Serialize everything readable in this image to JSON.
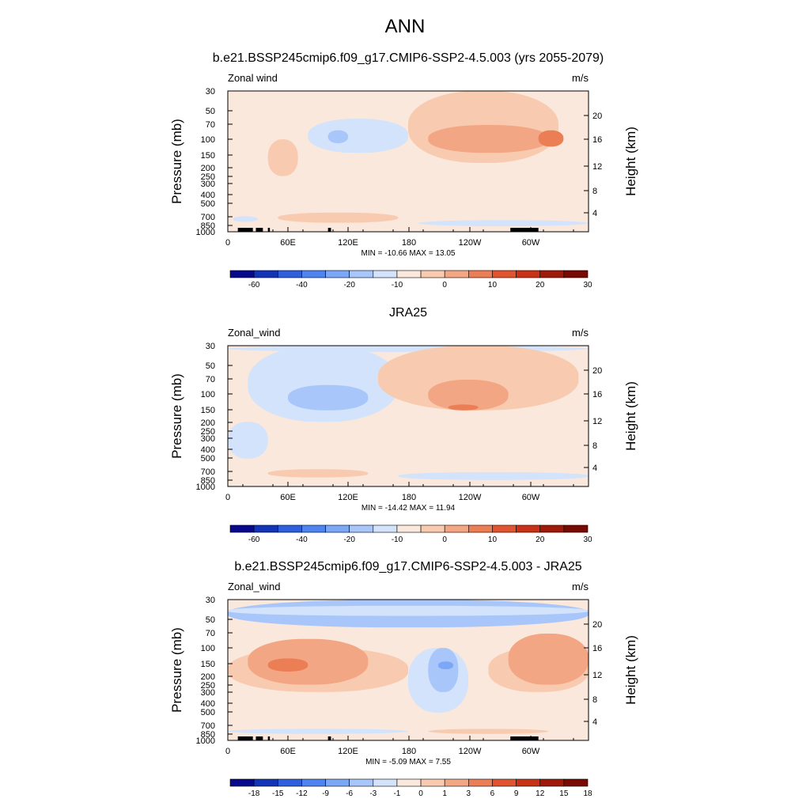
{
  "figure": {
    "title": "ANN"
  },
  "chart_data": [
    {
      "type": "heatmap",
      "title": "b.e21.BSSP245cmip6.f09_g17.CMIP6-SSP2-4.5.003 (yrs 2055-2079)",
      "left_label": "Zonal wind",
      "right_label": "m/s",
      "ylabel": "Pressure (mb)",
      "y2label": "Height (km)",
      "xticks": [
        "0",
        "60E",
        "120E",
        "180",
        "120W",
        "60W"
      ],
      "x_range": [
        0,
        360
      ],
      "yticks": [
        "30",
        "50",
        "70",
        "100",
        "150",
        "200",
        "250",
        "300",
        "400",
        "500",
        "700",
        "850",
        "1000"
      ],
      "y_range": [
        1000,
        30
      ],
      "y2ticks": [
        "20",
        "16",
        "12",
        "8",
        "4"
      ],
      "stats": "MIN = -10.66  MAX =  13.05",
      "colorbar": {
        "labels": [
          "-60",
          "-40",
          "-20",
          "-10",
          "0",
          "10",
          "20",
          "30"
        ],
        "colors": [
          "#08088c",
          "#1434b8",
          "#2f5fdc",
          "#4f84f0",
          "#7ca7f7",
          "#a8c6f9",
          "#d2e3fb",
          "#fbe8dc",
          "#f8cbb0",
          "#f3a683",
          "#ec7e55",
          "#e05530",
          "#c83318",
          "#a01a0c",
          "#780a04"
        ]
      },
      "blobs": [
        {
          "x": 0,
          "y": 960,
          "w": 360,
          "h": 920,
          "level": 0,
          "color": "#fbe8dc"
        },
        {
          "x": 80,
          "y": 140,
          "w": 100,
          "h": 80,
          "level": -1,
          "color": "#d2e3fb"
        },
        {
          "x": 100,
          "y": 110,
          "w": 20,
          "h": 30,
          "level": -2,
          "color": "#a8c6f9"
        },
        {
          "x": 180,
          "y": 180,
          "w": 150,
          "h": 190,
          "level": 1,
          "color": "#f8cbb0"
        },
        {
          "x": 200,
          "y": 140,
          "w": 120,
          "h": 70,
          "level": 2,
          "color": "#f3a683"
        },
        {
          "x": 310,
          "y": 120,
          "w": 25,
          "h": 40,
          "level": 3,
          "color": "#ec7e55"
        },
        {
          "x": 40,
          "y": 250,
          "w": 30,
          "h": 150,
          "level": 1,
          "color": "#f8cbb0"
        },
        {
          "x": 50,
          "y": 800,
          "w": 120,
          "h": 180,
          "level": 1,
          "color": "#f8cbb0"
        },
        {
          "x": 190,
          "y": 870,
          "w": 170,
          "h": 120,
          "level": -1,
          "color": "#d2e3fb"
        },
        {
          "x": 5,
          "y": 780,
          "w": 25,
          "h": 100,
          "level": -1,
          "color": "#d2e3fb"
        }
      ],
      "terrain": [
        [
          10,
          25
        ],
        [
          28,
          35
        ],
        [
          40,
          42
        ],
        [
          100,
          103
        ],
        [
          282,
          310
        ]
      ]
    },
    {
      "type": "heatmap",
      "title": "JRA25",
      "left_label": "Zonal_wind",
      "right_label": "m/s",
      "ylabel": "Pressure (mb)",
      "y2label": "Height (km)",
      "xticks": [
        "0",
        "60E",
        "120E",
        "180",
        "120W",
        "60W"
      ],
      "x_range": [
        0,
        360
      ],
      "yticks": [
        "30",
        "50",
        "70",
        "100",
        "150",
        "200",
        "250",
        "300",
        "400",
        "500",
        "700",
        "850",
        "1000"
      ],
      "y_range": [
        1000,
        30
      ],
      "y2ticks": [
        "20",
        "16",
        "12",
        "8",
        "4"
      ],
      "stats": "MIN = -14.42  MAX =  11.94",
      "colorbar": {
        "labels": [
          "-60",
          "-40",
          "-20",
          "-10",
          "0",
          "10",
          "20",
          "30"
        ],
        "colors": [
          "#08088c",
          "#1434b8",
          "#2f5fdc",
          "#4f84f0",
          "#7ca7f7",
          "#a8c6f9",
          "#d2e3fb",
          "#fbe8dc",
          "#f8cbb0",
          "#f3a683",
          "#ec7e55",
          "#e05530",
          "#c83318",
          "#a01a0c",
          "#780a04"
        ]
      },
      "blobs": [
        {
          "x": 0,
          "y": 960,
          "w": 360,
          "h": 920,
          "level": 0,
          "color": "#fbe8dc"
        },
        {
          "x": 0,
          "y": 35,
          "w": 360,
          "h": 5,
          "level": -1,
          "color": "#d2e3fb"
        },
        {
          "x": 20,
          "y": 200,
          "w": 150,
          "h": 200,
          "level": -1,
          "color": "#d2e3fb"
        },
        {
          "x": 60,
          "y": 150,
          "w": 80,
          "h": 70,
          "level": -2,
          "color": "#a8c6f9"
        },
        {
          "x": 150,
          "y": 150,
          "w": 200,
          "h": 250,
          "level": 1,
          "color": "#f8cbb0"
        },
        {
          "x": 200,
          "y": 150,
          "w": 80,
          "h": 80,
          "level": 2,
          "color": "#f3a683"
        },
        {
          "x": 220,
          "y": 150,
          "w": 30,
          "h": 20,
          "level": 3,
          "color": "#ec7e55"
        },
        {
          "x": 170,
          "y": 850,
          "w": 190,
          "h": 150,
          "level": -1,
          "color": "#d2e3fb"
        },
        {
          "x": 40,
          "y": 800,
          "w": 100,
          "h": 150,
          "level": 1,
          "color": "#f8cbb0"
        },
        {
          "x": 0,
          "y": 500,
          "w": 40,
          "h": 300,
          "level": -1,
          "color": "#d2e3fb"
        }
      ],
      "terrain": []
    },
    {
      "type": "heatmap",
      "title": "b.e21.BSSP245cmip6.f09_g17.CMIP6-SSP2-4.5.003 - JRA25",
      "left_label": "Zonal_wind",
      "right_label": "m/s",
      "ylabel": "Pressure (mb)",
      "y2label": "Height (km)",
      "xticks": [
        "0",
        "60E",
        "120E",
        "180",
        "120W",
        "60W"
      ],
      "x_range": [
        0,
        360
      ],
      "yticks": [
        "30",
        "50",
        "70",
        "100",
        "150",
        "200",
        "250",
        "300",
        "400",
        "500",
        "700",
        "850",
        "1000"
      ],
      "y_range": [
        1000,
        30
      ],
      "y2ticks": [
        "20",
        "16",
        "12",
        "8",
        "4"
      ],
      "stats": "MIN = -5.09  MAX =  7.55",
      "colorbar": {
        "labels": [
          "-18",
          "-15",
          "-12",
          "-9",
          "-6",
          "-3",
          "-1",
          "0",
          "1",
          "3",
          "6",
          "9",
          "12",
          "15",
          "18"
        ],
        "colors": [
          "#08088c",
          "#1434b8",
          "#2f5fdc",
          "#4f84f0",
          "#7ca7f7",
          "#a8c6f9",
          "#d2e3fb",
          "#fbe8dc",
          "#f8cbb0",
          "#f3a683",
          "#ec7e55",
          "#e05530",
          "#c83318",
          "#a01a0c",
          "#780a04"
        ]
      },
      "blobs": [
        {
          "x": 0,
          "y": 960,
          "w": 360,
          "h": 920,
          "level": 0,
          "color": "#fbe8dc"
        },
        {
          "x": 0,
          "y": 60,
          "w": 360,
          "h": 30,
          "level": -2,
          "color": "#a8c6f9"
        },
        {
          "x": 0,
          "y": 45,
          "w": 360,
          "h": 10,
          "level": -1,
          "color": "#d2e3fb"
        },
        {
          "x": 0,
          "y": 300,
          "w": 180,
          "h": 200,
          "level": 1,
          "color": "#f8cbb0"
        },
        {
          "x": 20,
          "y": 250,
          "w": 120,
          "h": 170,
          "level": 2,
          "color": "#f3a683"
        },
        {
          "x": 40,
          "y": 180,
          "w": 40,
          "h": 50,
          "level": 3,
          "color": "#ec7e55"
        },
        {
          "x": 260,
          "y": 300,
          "w": 100,
          "h": 200,
          "level": 1,
          "color": "#f8cbb0"
        },
        {
          "x": 280,
          "y": 250,
          "w": 80,
          "h": 180,
          "level": 2,
          "color": "#f3a683"
        },
        {
          "x": 180,
          "y": 500,
          "w": 60,
          "h": 400,
          "level": -1,
          "color": "#d2e3fb"
        },
        {
          "x": 200,
          "y": 300,
          "w": 30,
          "h": 200,
          "level": -2,
          "color": "#a8c6f9"
        },
        {
          "x": 210,
          "y": 170,
          "w": 15,
          "h": 30,
          "level": -3,
          "color": "#7ca7f7"
        },
        {
          "x": 0,
          "y": 850,
          "w": 180,
          "h": 100,
          "level": -1,
          "color": "#d2e3fb"
        },
        {
          "x": 200,
          "y": 850,
          "w": 120,
          "h": 100,
          "level": 1,
          "color": "#f8cbb0"
        }
      ],
      "terrain": [
        [
          10,
          25
        ],
        [
          28,
          35
        ],
        [
          40,
          42
        ],
        [
          100,
          103
        ],
        [
          282,
          310
        ]
      ]
    }
  ]
}
